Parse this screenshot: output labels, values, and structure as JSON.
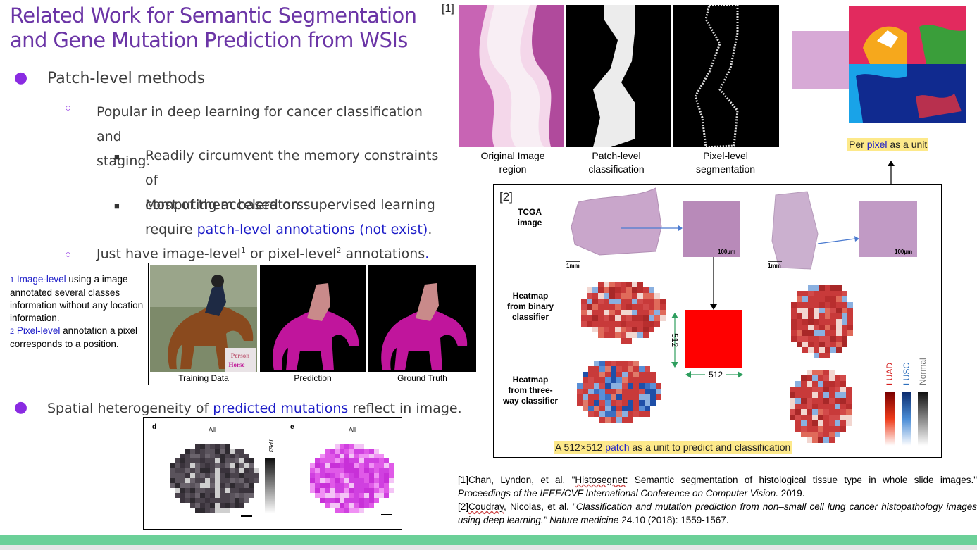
{
  "title_line1": "Related Work for Semantic Segmentation",
  "title_line2": "and Gene Mutation Prediction from WSIs",
  "bullet1": "Patch-level methods",
  "sub1_line1": "Popular in deep learning for cancer classification and",
  "sub1_line2": "staging.",
  "subsub1_line1": "Readily circumvent the memory constraints of",
  "subsub1_line2": "computing accelerators.",
  "subsub2_line1": "Most of them based on supervised learning",
  "subsub2_prefix": "require ",
  "subsub2_link": "patch-level annotations (not exist)",
  "subsub2_end": ".",
  "sub2_a": "Just have image-level",
  "sub2_sup1": "1",
  "sub2_b": " or pixel-level",
  "sub2_sup2": "2",
  "sub2_c": " annotations",
  "sub2_end": ".",
  "foot1_num": "1",
  "foot1_link": "Image-level",
  "foot1_text": " using a image annotated several classes information without any location information.",
  "foot2_num": "2",
  "foot2_link": "Pixel-level",
  "foot2_text": " annotation a pixel corresponds to a position.",
  "seg_fig": {
    "label_person": "Person",
    "label_horse": "Horse",
    "cap_training": "Training Data",
    "cap_prediction": "Prediction",
    "cap_truth": "Ground Truth"
  },
  "bullet2_a": "Spatial heterogeneity of ",
  "bullet2_link": "predicted mutations",
  "bullet2_b": " reflect in image.",
  "mut_fig": {
    "panel_d": "d",
    "panel_e": "e",
    "all_d": "All",
    "all_e": "All",
    "gene": "TP53"
  },
  "fig1": {
    "tag": "[1]",
    "cap_original": "Original Image region",
    "cap_patch": "Patch-level classification",
    "cap_pixel": "Pixel-level segmentation"
  },
  "per_pixel": {
    "a": "Per ",
    "link": "pixel",
    "b": " as a unit"
  },
  "fig2": {
    "tag": "[2]",
    "lbl_tcga": "TCGA image",
    "lbl_binary": "Heatmap from binary classifier",
    "lbl_three": "Heatmap from three-way classifier",
    "scale_1mm_a": "1mm",
    "scale_1mm_b": "1mm",
    "scale_100_a": "100µm",
    "scale_100_b": "100µm",
    "dim_v": "512",
    "dim_h": "512",
    "legend_luad": "LUAD",
    "legend_lusc": "LUSC",
    "legend_normal": "Normal",
    "bottom_a": "A 512×512 ",
    "bottom_link": "patch",
    "bottom_b": " as a unit to predict and classification"
  },
  "refs": {
    "r1_a": "[1]Chan, Lyndon, et al. \"",
    "r1_u": "Histosegnet",
    "r1_b": ": Semantic segmentation of histological tissue type in whole slide images.\" ",
    "r1_i": "Proceedings of the IEEE/CVF International Conference on Computer Vision.",
    "r1_c": " 2019.",
    "r2_a": "[2]",
    "r2_u": "Coudray",
    "r2_b": ", Nicolas, et al. \"",
    "r2_i": "Classification and mutation prediction from non–small cell lung cancer histopathology images using deep learning.\" Nature medicine",
    "r2_c": " 24.10 (2018): 1559-1567."
  },
  "colors": {
    "title": "#6b35a6",
    "bullet": "#8a2be2",
    "link": "#1c1cc8",
    "bottom_bar": "#6bd098",
    "highlight": "#fde98a",
    "patch_red": "#ff0000"
  }
}
